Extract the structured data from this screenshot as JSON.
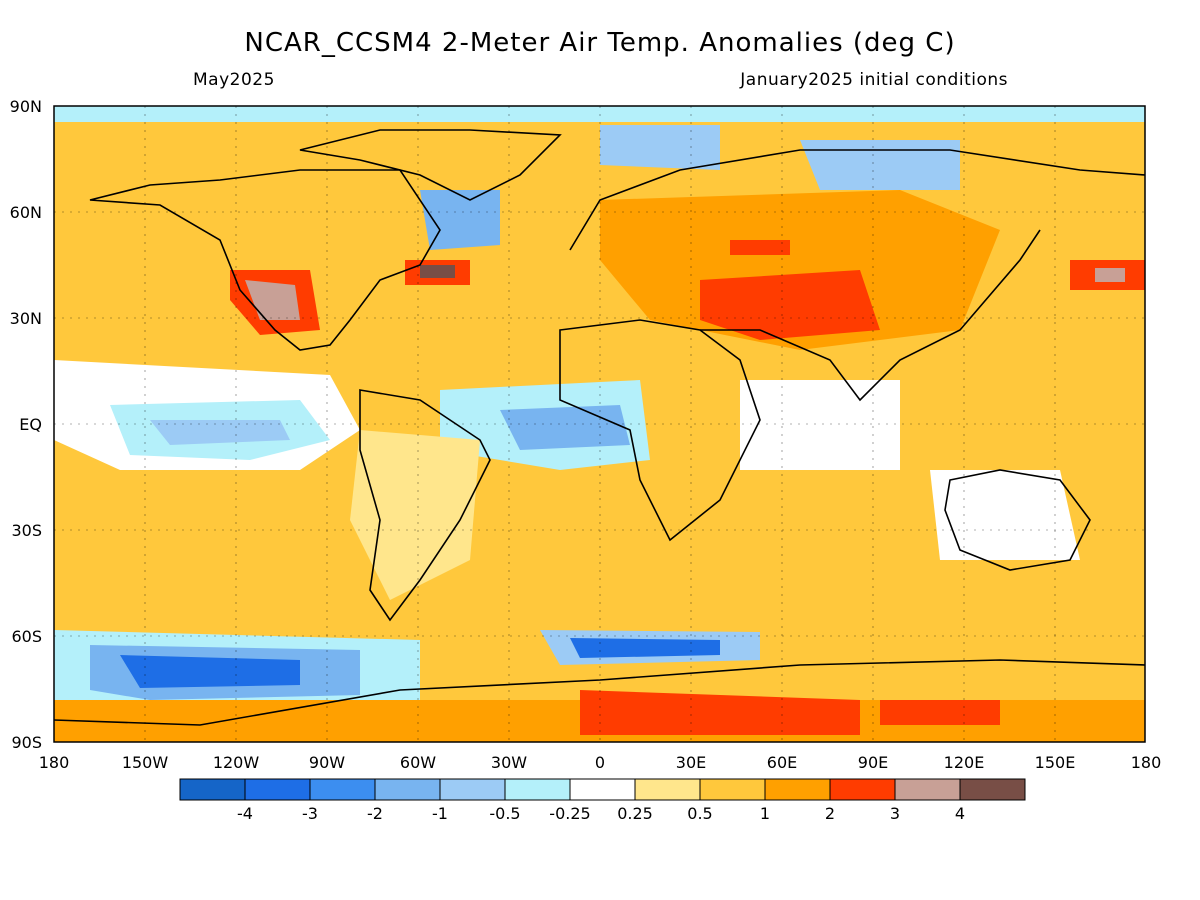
{
  "header": {
    "title": "NCAR_CCSM4 2-Meter Air Temp. Anomalies (deg C)",
    "subtitle_left": "May2025",
    "subtitle_right": "January2025 initial conditions"
  },
  "axes": {
    "lat_labels": [
      "90N",
      "60N",
      "30N",
      "EQ",
      "30S",
      "60S",
      "90S"
    ],
    "lon_labels": [
      "180",
      "150W",
      "120W",
      "90W",
      "60W",
      "30W",
      "0",
      "30E",
      "60E",
      "90E",
      "120E",
      "150E",
      "180"
    ]
  },
  "colorbar": {
    "colors": [
      "#1565c8",
      "#1e6ee6",
      "#3c8ef0",
      "#78b4f0",
      "#9ccbf5",
      "#b4f0fa",
      "#ffffff",
      "#ffe68c",
      "#ffc83c",
      "#ffa000",
      "#ff3c00",
      "#c8a096",
      "#784e46"
    ],
    "tick_labels": [
      "-4",
      "-3",
      "-2",
      "-1",
      "-0.5",
      "-0.25",
      "0.25",
      "0.5",
      "1",
      "2",
      "3",
      "4"
    ]
  }
}
